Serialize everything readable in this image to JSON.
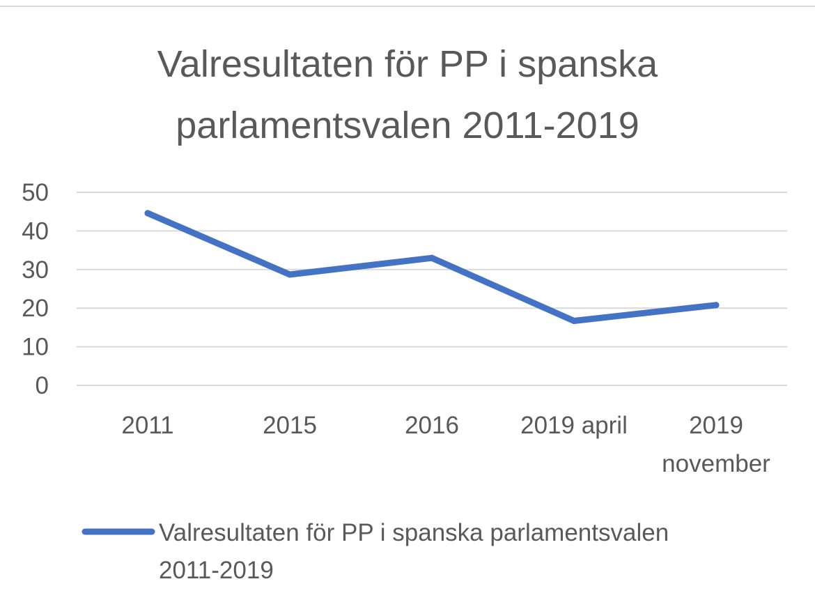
{
  "chart_data": {
    "type": "line",
    "title": [
      "Valresultaten för PP i spanska",
      "parlamentsvalen 2011-2019"
    ],
    "categories": [
      "2011",
      "2015",
      "2016",
      "2019 april",
      "2019 november"
    ],
    "category_labels": [
      [
        "2011"
      ],
      [
        "2015"
      ],
      [
        "2016"
      ],
      [
        "2019 april"
      ],
      [
        "2019",
        "november"
      ]
    ],
    "series": [
      {
        "name": "Valresultaten för PP i spanska parlamentsvalen 2011-2019",
        "name_lines": [
          "Valresultaten för PP i spanska parlamentsvalen",
          "2011-2019"
        ],
        "values": [
          44.6,
          28.7,
          33.0,
          16.7,
          20.8
        ],
        "color": "#4472C4"
      }
    ],
    "ylim": [
      0,
      50
    ],
    "yticks": [
      0,
      10,
      20,
      30,
      40,
      50
    ],
    "grid": true,
    "legend_position": "bottom"
  }
}
